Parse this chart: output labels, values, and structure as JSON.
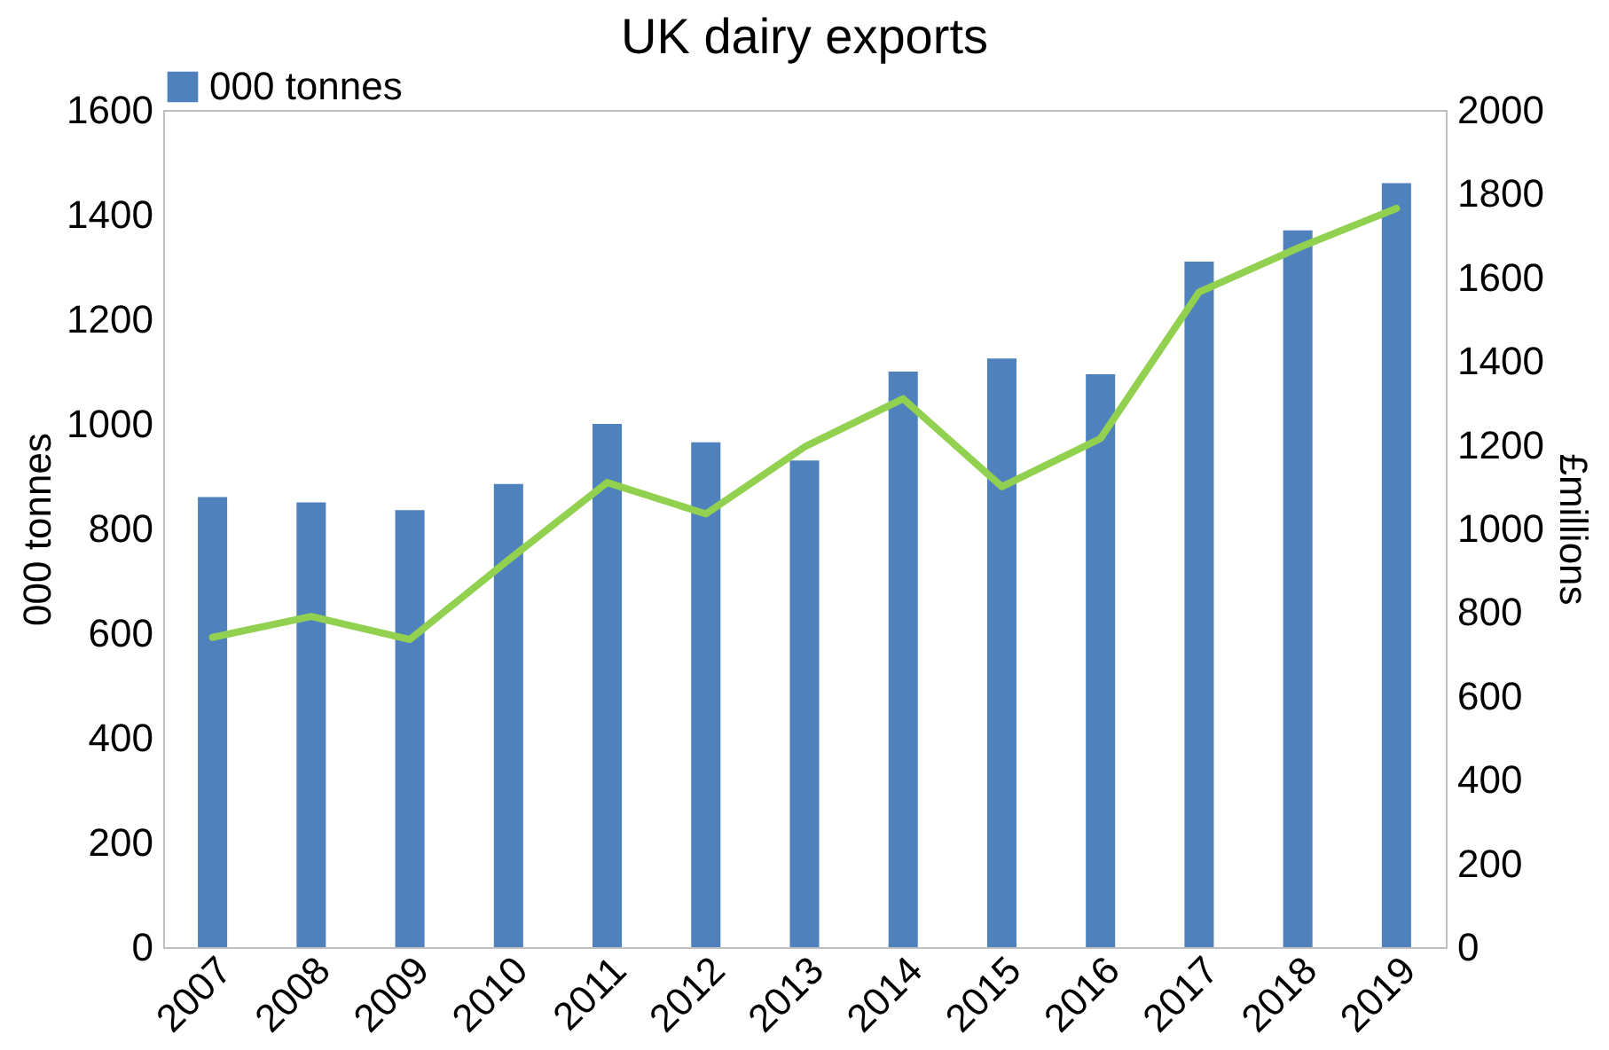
{
  "chart_data": {
    "type": "bar",
    "title": "UK dairy exports",
    "ylabel": "000 tonnes",
    "y2label": "£millions",
    "categories": [
      "2007",
      "2008",
      "2009",
      "2010",
      "2011",
      "2012",
      "2013",
      "2014",
      "2015",
      "2016",
      "2017",
      "2018",
      "2019"
    ],
    "series": [
      {
        "name": "000 tonnes",
        "color": "#4f81bd",
        "values": [
          860,
          850,
          835,
          885,
          1000,
          965,
          930,
          1100,
          1125,
          1095,
          1310,
          1370,
          1460
        ]
      },
      {
        "type": "line",
        "axis": "y2",
        "color": "#92d050",
        "values": [
          740,
          790,
          735,
          925,
          1110,
          1035,
          1195,
          1310,
          1100,
          1215,
          1565,
          1670,
          1765
        ]
      }
    ],
    "ylim": [
      0,
      1600
    ],
    "yticks": [
      0,
      200,
      400,
      600,
      800,
      1000,
      1200,
      1400,
      1600
    ],
    "y2lim": [
      0,
      2000
    ],
    "y2ticks": [
      0,
      200,
      400,
      600,
      800,
      1000,
      1200,
      1400,
      1600,
      1800,
      2000
    ],
    "legend": "top",
    "grid": false
  }
}
